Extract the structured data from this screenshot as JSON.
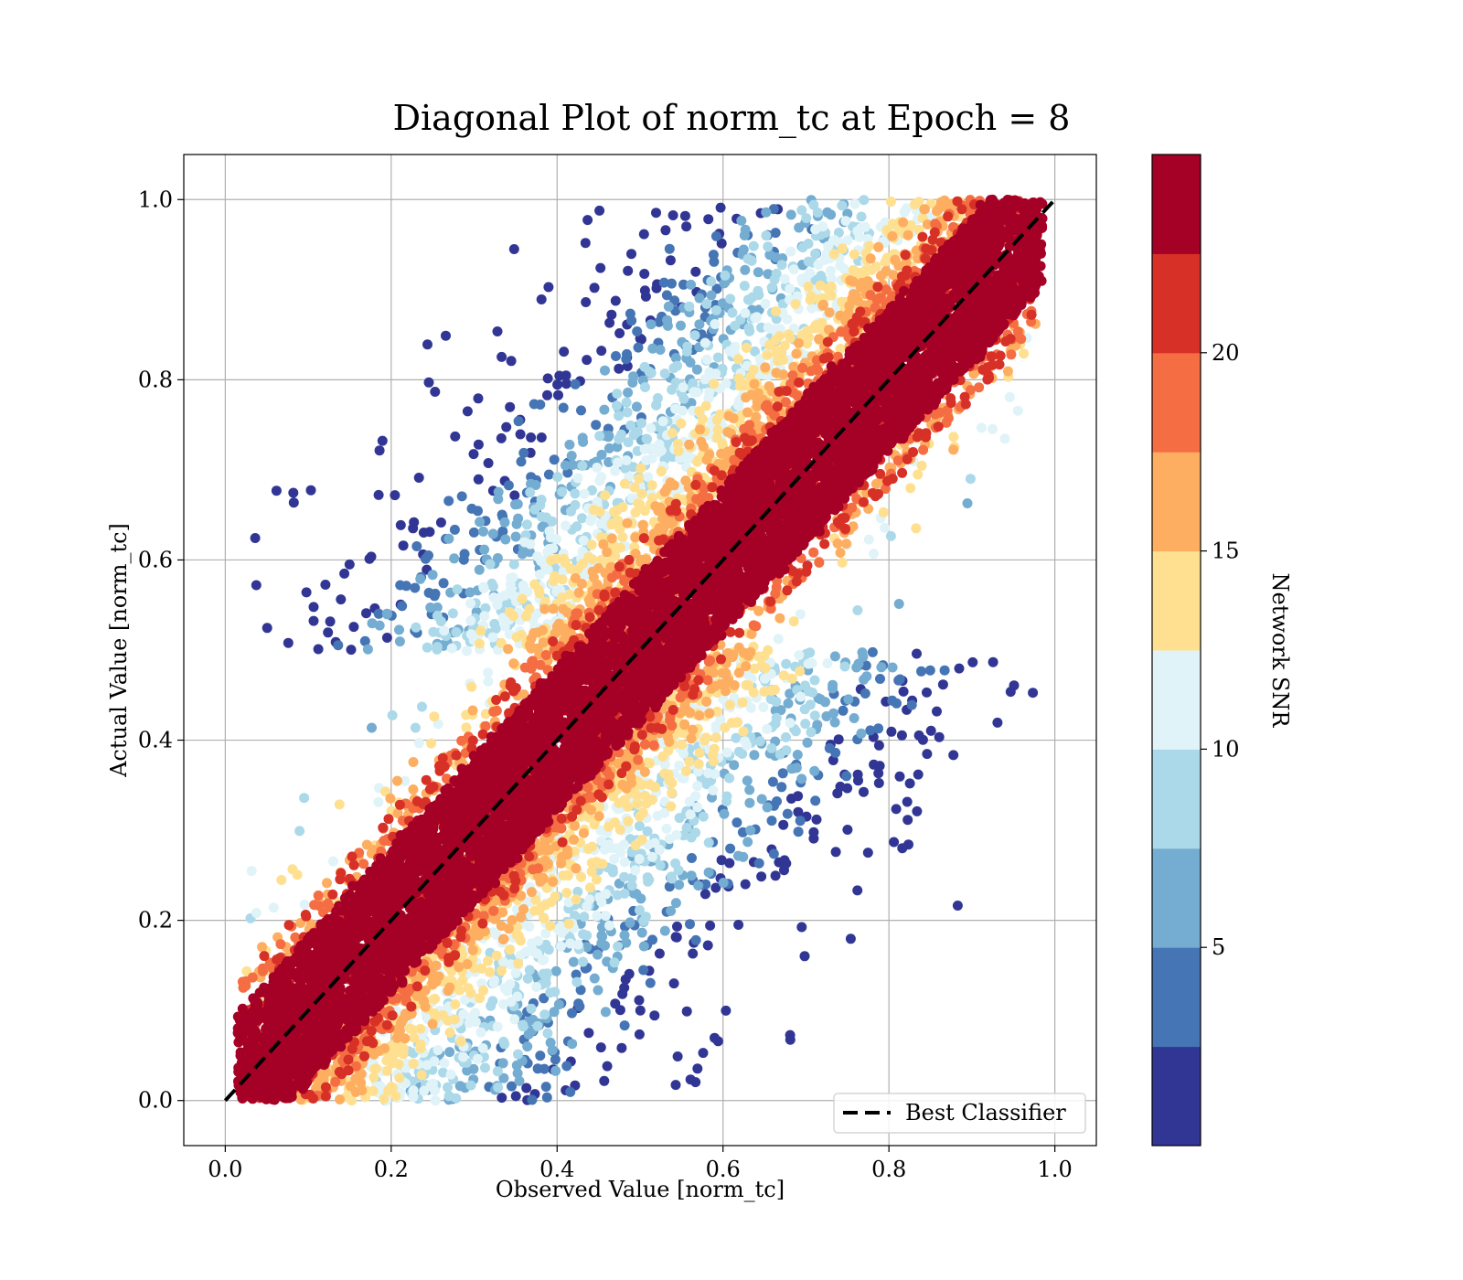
{
  "chart_data": {
    "type": "scatter",
    "title": "Diagonal Plot of norm_tc at Epoch = 8",
    "xlabel": "Observed Value [norm_tc]",
    "ylabel": "Actual Value [norm_tc]",
    "xlim": [
      -0.05,
      1.05
    ],
    "ylim": [
      -0.05,
      1.05
    ],
    "xticks": [
      0.0,
      0.2,
      0.4,
      0.6,
      0.8,
      1.0
    ],
    "yticks": [
      0.0,
      0.2,
      0.4,
      0.6,
      0.8,
      1.0
    ],
    "xtick_labels": [
      "0.0",
      "0.2",
      "0.4",
      "0.6",
      "0.8",
      "1.0"
    ],
    "ytick_labels": [
      "0.0",
      "0.2",
      "0.4",
      "0.6",
      "0.8",
      "1.0"
    ],
    "grid": true,
    "legend": {
      "placement": "lower-right",
      "entries": [
        "Best Classifier"
      ]
    },
    "reference_line": {
      "name": "Best Classifier",
      "x": [
        0.0,
        1.0
      ],
      "y": [
        0.0,
        1.0
      ],
      "style": "dashed",
      "color": "#000000"
    },
    "points_distribution": {
      "description_note": "",
      "x_range": [
        0.0,
        1.0
      ],
      "y_range": [
        0.0,
        1.0
      ],
      "high_snr_band_halfwidth": 0.08,
      "max_spread": 0.45
    },
    "colorbar": {
      "label": "Network SNR",
      "min": 0,
      "max": 25,
      "ticks": [
        5,
        10,
        15,
        20
      ],
      "tick_labels": [
        "5",
        "10",
        "15",
        "20"
      ],
      "colors": [
        "#313695",
        "#4575b4",
        "#74add1",
        "#abd9e9",
        "#e0f3f8",
        "#fee090",
        "#fdae61",
        "#f46d43",
        "#d73027",
        "#a50026"
      ]
    }
  }
}
